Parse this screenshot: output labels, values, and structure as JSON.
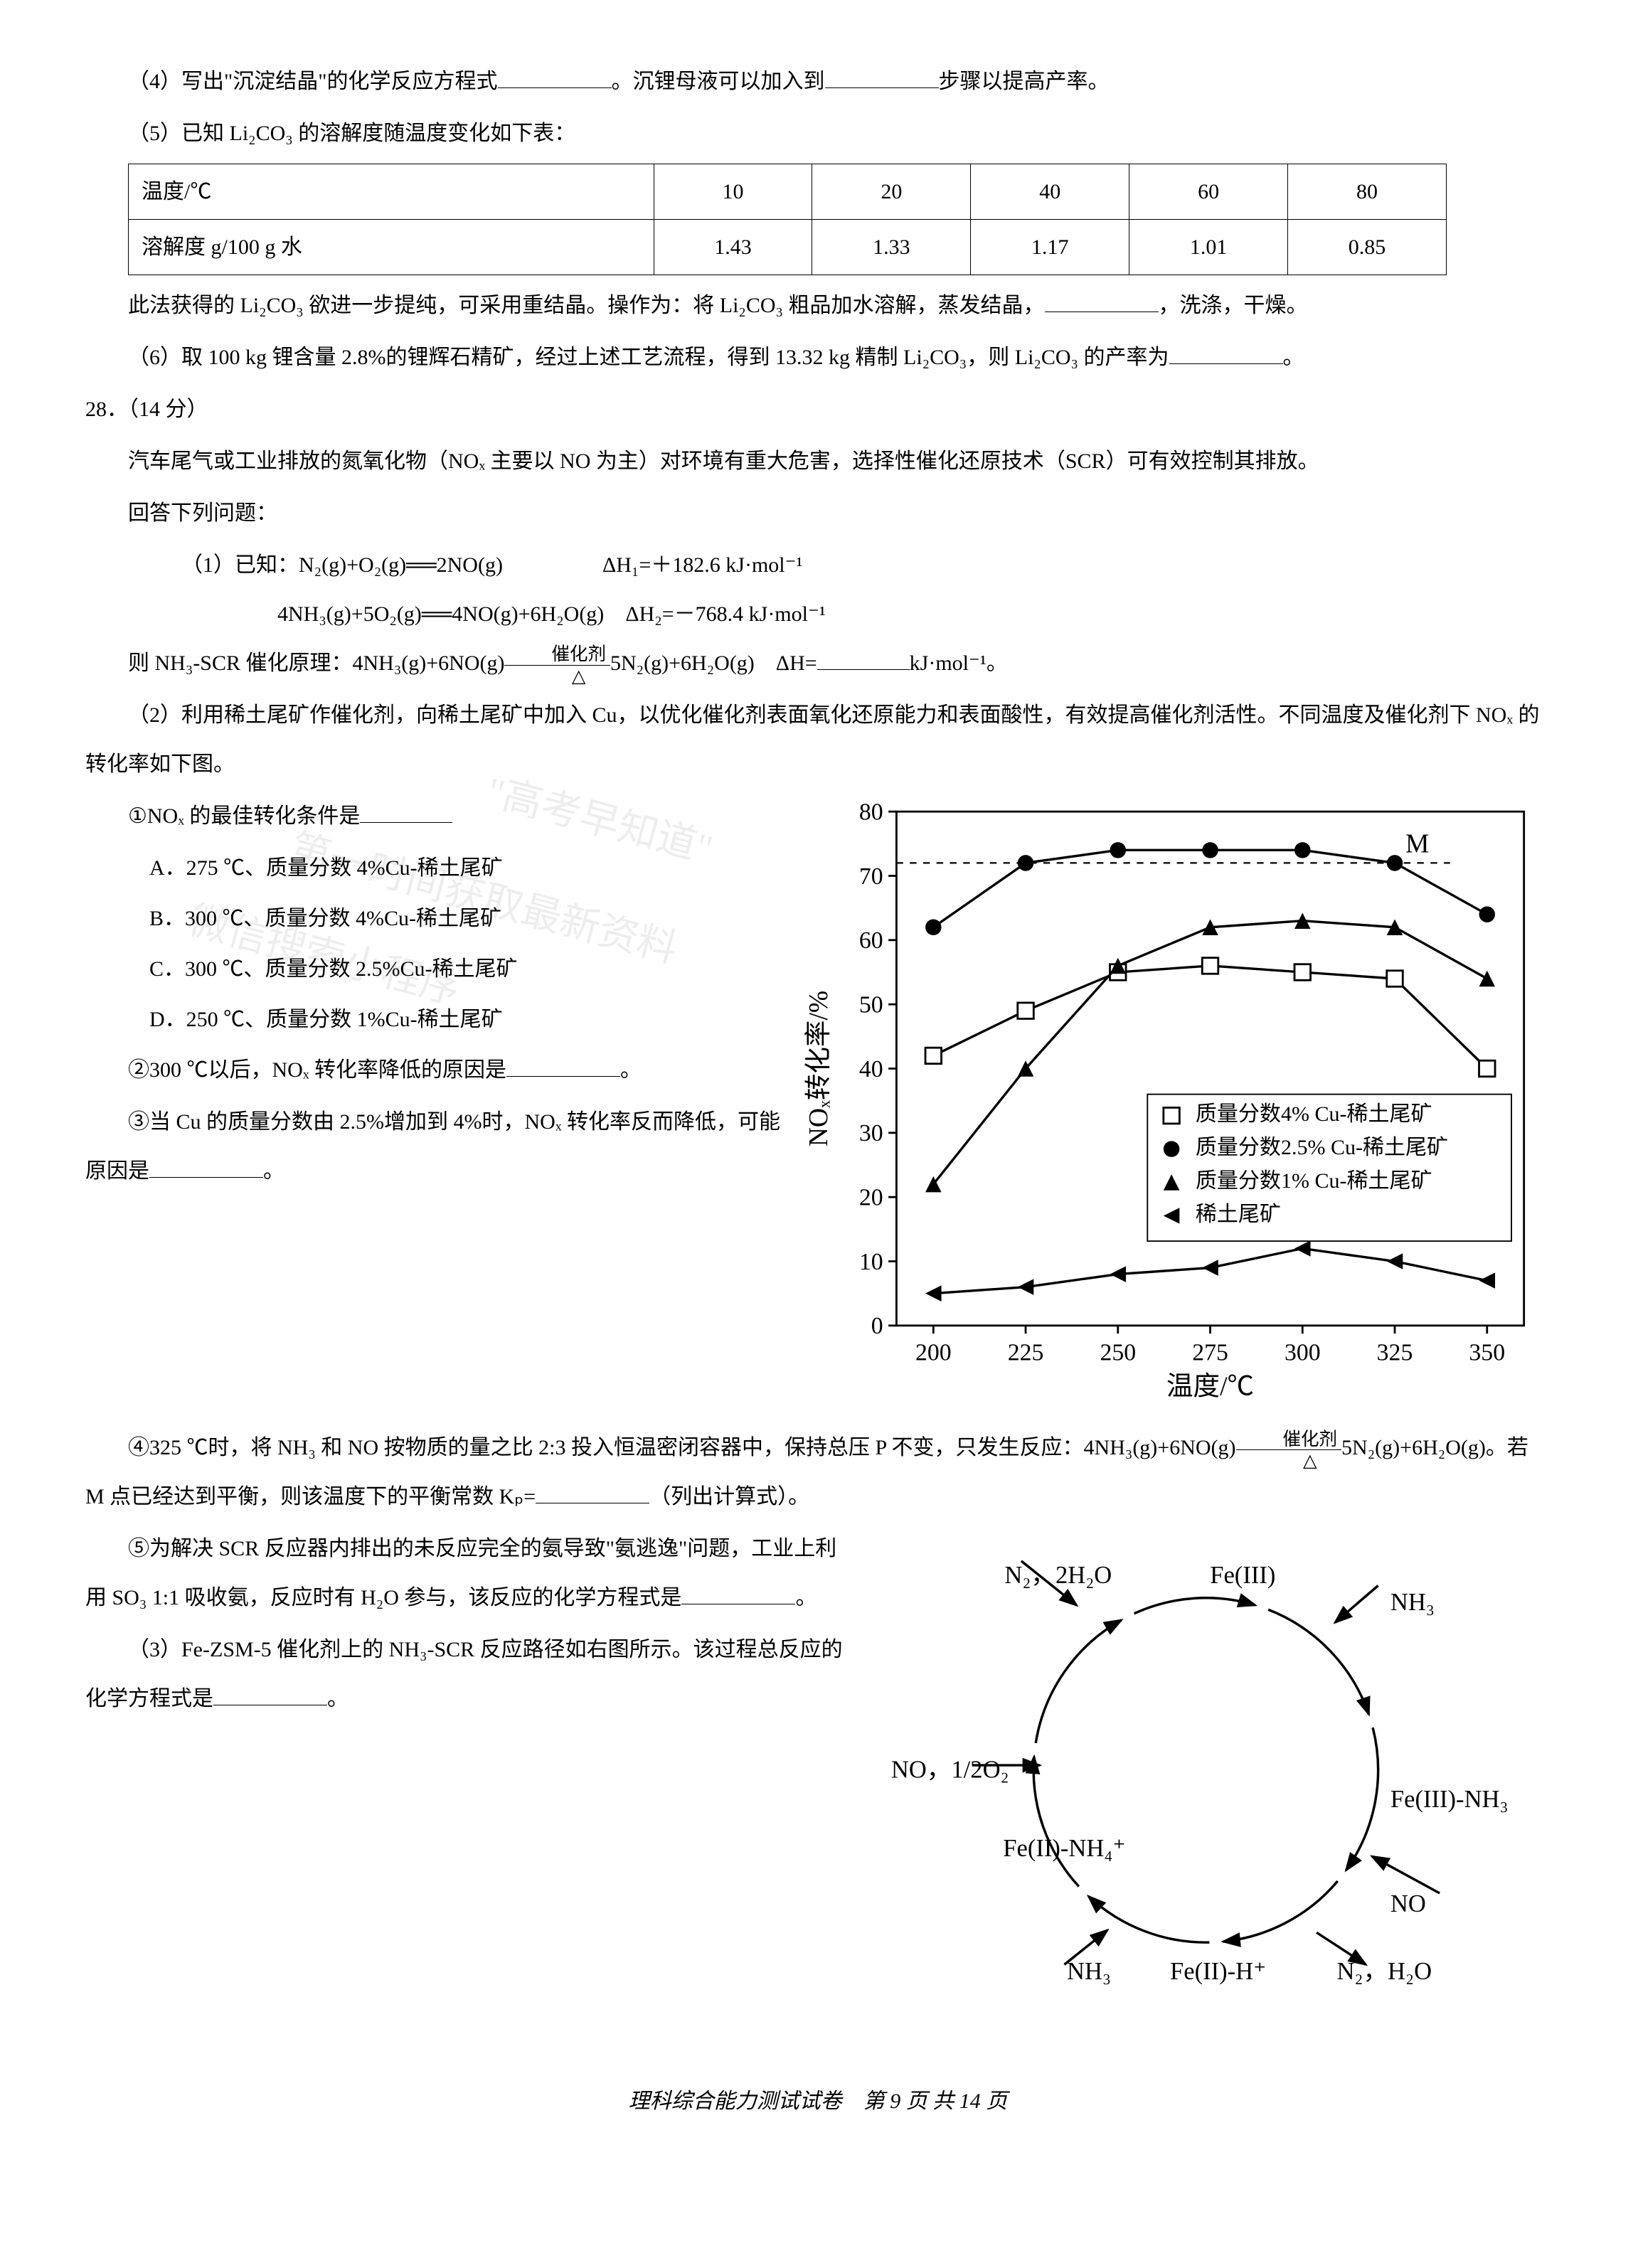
{
  "q4": {
    "text_a": "（4）写出\"沉淀结晶\"的化学反应方程式",
    "text_b": "。沉锂母液可以加入到",
    "text_c": "步骤以提高产率。"
  },
  "q5": {
    "intro": "（5）已知 Li₂CO₃ 的溶解度随温度变化如下表：",
    "table": {
      "headers": [
        "温度/℃",
        "10",
        "20",
        "40",
        "60",
        "80"
      ],
      "row": [
        "溶解度 g/100 g 水",
        "1.43",
        "1.33",
        "1.17",
        "1.01",
        "0.85"
      ]
    },
    "after_a": "此法获得的 Li₂CO₃ 欲进一步提纯，可采用重结晶。操作为：将 Li₂CO₃ 粗品加水溶解，蒸发结晶，",
    "after_b": "，洗涤，干燥。"
  },
  "q6": {
    "text_a": "（6）取 100 kg 锂含量 2.8%的锂辉石精矿，经过上述工艺流程，得到 13.32 kg 精制 Li₂CO₃，则 Li₂CO₃ 的产率为",
    "text_b": "。"
  },
  "q28": {
    "num": "28．（14 分）",
    "intro": "汽车尾气或工业排放的氮氧化物（NOₓ 主要以 NO 为主）对环境有重大危害，选择性催化还原技术（SCR）可有效控制其排放。",
    "answer_prompt": "回答下列问题：",
    "p1_intro": "（1）已知：",
    "eq1_left": "N₂(g)+O₂(g)══2NO(g)",
    "eq1_right": "ΔH₁=＋182.6 kJ·mol⁻¹",
    "eq2_left": "4NH₃(g)+5O₂(g)══4NO(g)+6H₂O(g)",
    "eq2_right": "ΔH₂=－768.4 kJ·mol⁻¹",
    "p1_conclusion_a": "则 NH₃-SCR 催化原理：4NH₃(g)+6NO(g)",
    "p1_cat": "催化剂",
    "p1_delta": "△",
    "p1_conclusion_b": "5N₂(g)+6H₂O(g)　ΔH=",
    "p1_unit": "kJ·mol⁻¹。",
    "p2_intro": "（2）利用稀土尾矿作催化剂，向稀土尾矿中加入 Cu，以优化催化剂表面氧化还原能力和表面酸性，有效提高催化剂活性。不同温度及催化剂下 NOₓ 的转化率如下图。",
    "s1": "①NOₓ 的最佳转化条件是",
    "optA": "A．275 ℃、质量分数 4%Cu-稀土尾矿",
    "optB": "B．300 ℃、质量分数 4%Cu-稀土尾矿",
    "optC": "C．300 ℃、质量分数 2.5%Cu-稀土尾矿",
    "optD": "D．250 ℃、质量分数 1%Cu-稀土尾矿",
    "s2_a": "②300 ℃以后，NOₓ 转化率降低的原因是",
    "s2_b": "。",
    "s3_a": "③当 Cu 的质量分数由 2.5%增加到 4%时，NOₓ 转化率反而降低，可能原因是",
    "s3_b": "。",
    "s4_a": "④325 ℃时，将 NH₃ 和 NO 按物质的量之比 2:3 投入恒温密闭容器中，保持总压 P 不变，只发生反应：4NH₃(g)+6NO(g)",
    "s4_b": "5N₂(g)+6H₂O(g)。若 M 点已经达到平衡，则该温度下的平衡常数 Kₚ=",
    "s4_c": "（列出计算式）。",
    "s5_a": "⑤为解决 SCR 反应器内排出的未反应完全的氨导致\"氨逃逸\"问题，工业上利用 SO₃ 1:1 吸收氨，反应时有 H₂O 参与，该反应的化学方程式是",
    "s5_b": "。",
    "p3_a": "（3）Fe-ZSM-5 催化剂上的 NH₃-SCR 反应路径如右图所示。该过程总反应的化学方程式是",
    "p3_b": "。"
  },
  "chart": {
    "ylabel": "NOₓ转化率/%",
    "xlabel": "温度/℃",
    "xticks": [
      200,
      225,
      250,
      275,
      300,
      325,
      350
    ],
    "yticks": [
      0,
      10,
      20,
      30,
      40,
      50,
      60,
      70,
      80
    ],
    "ylim": [
      0,
      80
    ],
    "xlim": [
      190,
      360
    ],
    "dashed_y": 72,
    "M_label": "M",
    "M_pos": [
      325,
      72
    ],
    "background_color": "#ffffff",
    "grid_color": "#000000",
    "legend": [
      {
        "marker": "square-open",
        "label": "质量分数4% Cu-稀土尾矿"
      },
      {
        "marker": "circle-filled",
        "label": "质量分数2.5% Cu-稀土尾矿"
      },
      {
        "marker": "triangle-filled",
        "label": "质量分数1% Cu-稀土尾矿"
      },
      {
        "marker": "triangle-left-filled",
        "label": "稀土尾矿"
      }
    ],
    "series": {
      "cu4": {
        "marker": "square-open",
        "color": "#000000",
        "x": [
          200,
          225,
          250,
          275,
          300,
          325,
          350
        ],
        "y": [
          42,
          49,
          55,
          56,
          55,
          54,
          40
        ]
      },
      "cu25": {
        "marker": "circle-filled",
        "color": "#000000",
        "x": [
          200,
          225,
          250,
          275,
          300,
          325,
          350
        ],
        "y": [
          62,
          72,
          74,
          74,
          74,
          72,
          64
        ]
      },
      "cu1": {
        "marker": "triangle-filled",
        "color": "#000000",
        "x": [
          200,
          225,
          250,
          275,
          300,
          325,
          350
        ],
        "y": [
          22,
          40,
          56,
          62,
          63,
          62,
          54
        ]
      },
      "none": {
        "marker": "triangle-left-filled",
        "color": "#000000",
        "x": [
          200,
          225,
          250,
          275,
          300,
          325,
          350
        ],
        "y": [
          5,
          6,
          8,
          9,
          12,
          10,
          7
        ]
      }
    }
  },
  "cycle": {
    "labels": {
      "top_left": "N₂，2H₂O",
      "top_right_a": "Fe(III)",
      "top_right_b": "NH₃",
      "left_mid": "NO，1/2O₂",
      "left_low": "Fe(II)-NH₄⁺",
      "right_mid": "Fe(III)-NH₃",
      "right_low": "NO",
      "bottom_left": "NH₃",
      "bottom_mid": "Fe(II)-H⁺",
      "bottom_right": "N₂，H₂O"
    },
    "stroke": "#000000"
  },
  "watermarks": {
    "w1": "\"高考早知道\"",
    "w2": "第一时间获取最新资料",
    "w3": "微信搜索小程序"
  },
  "footer": "理科综合能力测试试卷　第 9 页 共 14 页"
}
